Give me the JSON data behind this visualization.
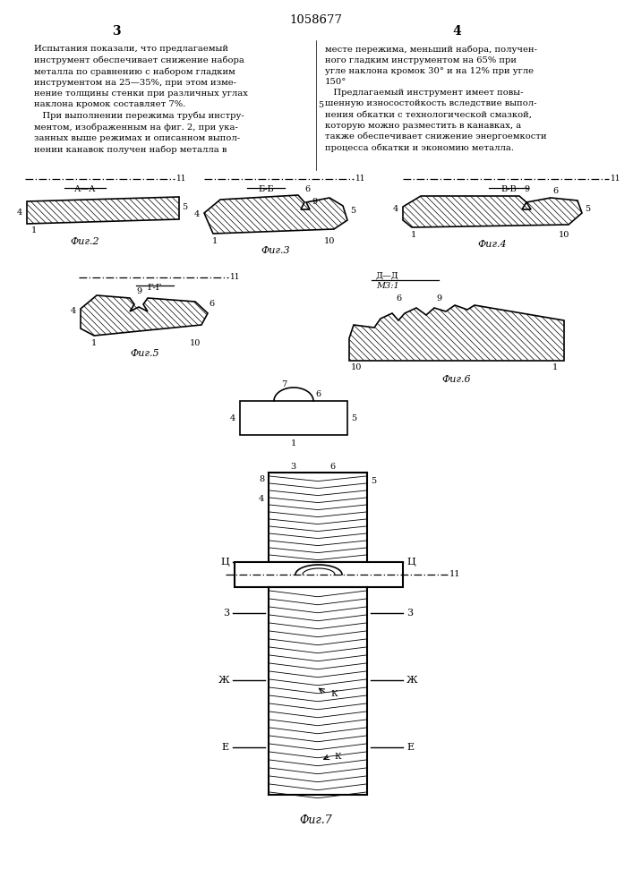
{
  "title": "1058677",
  "bg_color": "#ffffff",
  "line_color": "#000000",
  "fig_width": 7.07,
  "fig_height": 10.0,
  "left_col_text": "Испытания показали, что предлагаемый\nинструмент обеспечивает снижение набора\nметалла по сравнению с набором гладким\nинструментом на 25—35%, при этом изме-\nнение толщины стенки при различных углах\nнаклона кромок составляет 7%.\n   При выполнении пережима трубы инстру-\nментом, изображенным на фиг. 2, при ука-\nзанных выше режимах и описанном выпол-\nнении канавок получен набор металла в",
  "right_col_text": "месте пережима, меньший набора, получен-\nного гладким инструментом на 65% при\nугле наклона кромок 30° и на 12% при угле\n150°\n   Предлагаемый инструмент имеет повы-\nшенную износостойкость вследствие выпол-\nнения обкатки с технологической смазкой,\nкоторую можно разместить в канавках, а\nтакже обеспечивает снижение энергоемкости\nпроцесса обкатки и экономию металла."
}
